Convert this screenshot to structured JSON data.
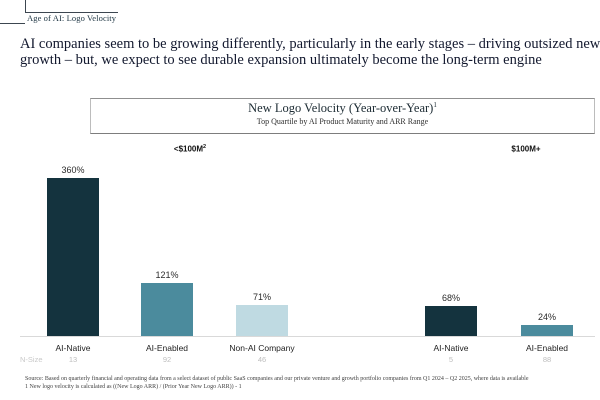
{
  "page": {
    "eyebrow": "Age of AI: Logo Velocity",
    "headline_line1": "AI companies seem to be growing differently, particularly in the early stages – driving outsized new logo",
    "headline_line2": "growth – but, we expect to see durable expansion ultimately become the long-term engine"
  },
  "chart_data": {
    "type": "bar",
    "title": "New Logo Velocity (Year-over-Year)",
    "title_footnote_sup": "1",
    "subtitle": "Top Quartile by AI Product Maturity and ARR Range",
    "sections": [
      {
        "label": "<$100M",
        "label_sup": "2"
      },
      {
        "label": "$100M+",
        "label_sup": ""
      }
    ],
    "categories": [
      "AI-Native",
      "AI-Enabled",
      "Non-AI Company",
      "AI-Native",
      "AI-Enabled"
    ],
    "values_pct": [
      360,
      121,
      71,
      68,
      24
    ],
    "bars": [
      {
        "section": "<$100M",
        "category": "AI-Native",
        "value_pct": 360,
        "value_label": "360%",
        "n_size": "13",
        "color": "#14333e"
      },
      {
        "section": "<$100M",
        "category": "AI-Enabled",
        "value_pct": 121,
        "value_label": "121%",
        "n_size": "92",
        "color": "#4b8b9d"
      },
      {
        "section": "<$100M",
        "category": "Non-AI Company",
        "value_pct": 71,
        "value_label": "71%",
        "n_size": "46",
        "color": "#bfdae2"
      },
      {
        "section": "$100M+",
        "category": "AI-Native",
        "value_pct": 68,
        "value_label": "68%",
        "n_size": "5",
        "color": "#14333e"
      },
      {
        "section": "$100M+",
        "category": "AI-Enabled",
        "value_pct": 24,
        "value_label": "24%",
        "n_size": "88",
        "color": "#4b8b9d"
      }
    ],
    "n_size_row_label": "N-Size",
    "colors": {
      "ai_native": "#14333e",
      "ai_enabled": "#4b8b9d",
      "non_ai": "#bfdae2"
    },
    "ylim": [
      0,
      380
    ],
    "grid": false,
    "legend": "none"
  },
  "footer": {
    "source_line": "Source: Based on quarterly financial and operating data from a select dataset of public SaaS companies and our private venture and growth portfolio companies from Q1 2024 – Q2 2025, where data is available",
    "footnote_line": "1 New logo velocity is calculated as ((New Logo ARR) / (Prior Year New Logo ARR)) - 1"
  }
}
